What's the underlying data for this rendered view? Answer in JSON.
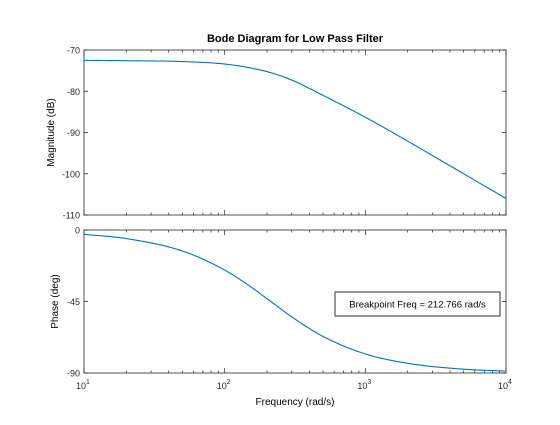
{
  "figure": {
    "title": "Bode Diagram for Low Pass Filter",
    "xlabel": "Frequency  (rad/s)"
  },
  "colors": {
    "line": "#0072bd",
    "axes": "#262626",
    "tick_text": "#262626",
    "background": "#ffffff"
  },
  "chart_data": [
    {
      "type": "line",
      "title": "Bode Diagram for Low Pass Filter",
      "xlabel": "",
      "ylabel": "Magnitude (dB)",
      "xscale": "log",
      "xlim": [
        10,
        10000
      ],
      "ylim": [
        -110,
        -70
      ],
      "yticks": [
        -70,
        -80,
        -90,
        -100,
        -110
      ],
      "ytick_labels": [
        "-70",
        "-80",
        "-90",
        "-100",
        "-110"
      ],
      "grid": false,
      "series": [
        {
          "x": [
            10,
            20,
            50,
            100,
            150,
            212.766,
            300,
            500,
            1000,
            2000,
            5000,
            10000
          ],
          "y": [
            -72.5,
            -72.6,
            -72.8,
            -73.4,
            -74.3,
            -75.5,
            -77.3,
            -81.0,
            -86.3,
            -92.1,
            -100.0,
            -106.0
          ]
        }
      ]
    },
    {
      "type": "line",
      "xlabel": "Frequency  (rad/s)",
      "ylabel": "Phase (deg)",
      "xscale": "log",
      "xlim": [
        10,
        10000
      ],
      "ylim": [
        -90,
        0
      ],
      "yticks": [
        0,
        -45,
        -90
      ],
      "ytick_labels": [
        "0",
        "-45",
        "-90"
      ],
      "xticks": [
        10,
        100,
        1000,
        10000
      ],
      "xtick_labels": [
        {
          "base": "10",
          "exp": "1"
        },
        {
          "base": "10",
          "exp": "2"
        },
        {
          "base": "10",
          "exp": "3"
        },
        {
          "base": "10",
          "exp": "4"
        }
      ],
      "grid": false,
      "annotation": "Breakpoint Freq = 212.766 rad/s",
      "series": [
        {
          "x": [
            10,
            20,
            50,
            100,
            150,
            212.766,
            300,
            500,
            1000,
            2000,
            5000,
            10000
          ],
          "y": [
            -2.7,
            -5.4,
            -13.2,
            -25.2,
            -35.2,
            -45.0,
            -54.7,
            -67.0,
            -78.0,
            -83.9,
            -87.6,
            -88.8
          ]
        }
      ]
    }
  ]
}
